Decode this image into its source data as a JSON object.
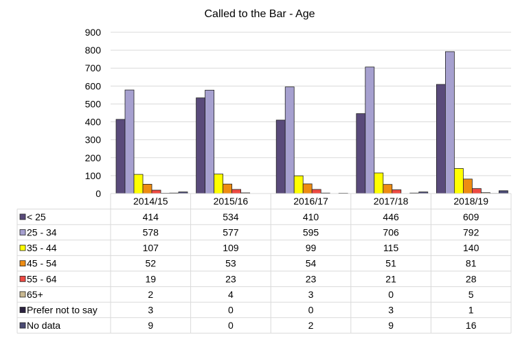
{
  "chart_data": {
    "type": "bar",
    "title": "Called to the Bar - Age",
    "categories": [
      "2014/15",
      "2015/16",
      "2016/17",
      "2017/18",
      "2018/19"
    ],
    "ylim": [
      0,
      900
    ],
    "yticks": [
      0,
      100,
      200,
      300,
      400,
      500,
      600,
      700,
      800,
      900
    ],
    "grid": true,
    "legend_placement": "data table below chart",
    "series": [
      {
        "name": "< 25",
        "color": "#594a7a",
        "values": [
          414,
          534,
          410,
          446,
          609
        ]
      },
      {
        "name": "25 - 34",
        "color": "#a6a0cf",
        "values": [
          578,
          577,
          595,
          706,
          792
        ]
      },
      {
        "name": "35 - 44",
        "color": "#ffff00",
        "values": [
          107,
          109,
          99,
          115,
          140
        ]
      },
      {
        "name": "45 - 54",
        "color": "#ee8c12",
        "values": [
          52,
          53,
          54,
          51,
          81
        ]
      },
      {
        "name": "55 - 64",
        "color": "#ee4a43",
        "values": [
          19,
          23,
          23,
          21,
          28
        ]
      },
      {
        "name": "65+",
        "color": "#c9b890",
        "values": [
          2,
          4,
          3,
          0,
          5
        ]
      },
      {
        "name": "Prefer not to say",
        "color": "#2b2240",
        "values": [
          3,
          0,
          0,
          3,
          1
        ]
      },
      {
        "name": "No data",
        "color": "#4a4a74",
        "values": [
          9,
          0,
          2,
          9,
          16
        ]
      }
    ]
  }
}
